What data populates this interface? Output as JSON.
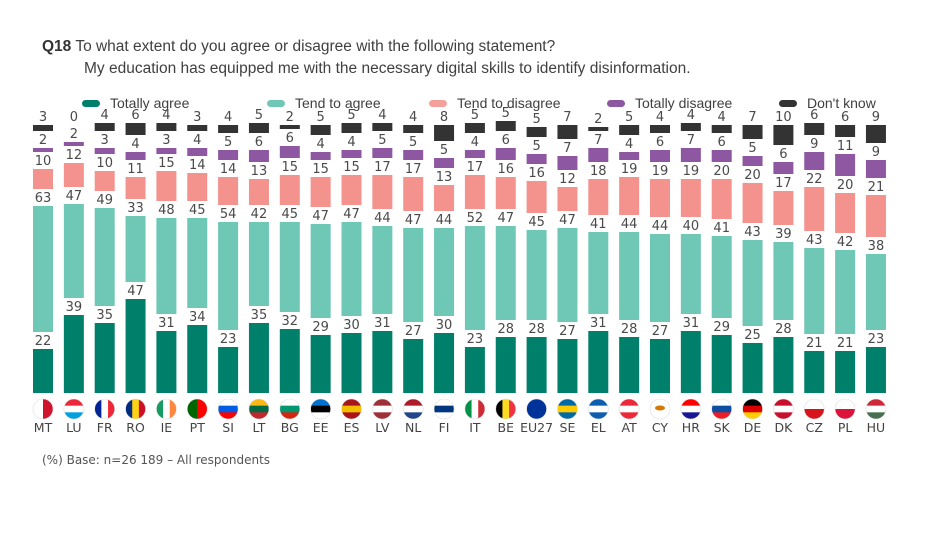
{
  "title": {
    "code": "Q18",
    "line1": "To what extent do you agree or disagree with the following statement?",
    "line2": "My education has equipped me with the necessary digital skills to identify disinformation."
  },
  "footer": "(%) Base: n=26 189 – All respondents",
  "chart_data": {
    "type": "bar",
    "stacked": true,
    "title": "To what extent do you agree or disagree with the following statement? My education has equipped me with the necessary digital skills to identify disinformation.",
    "xlabel": "",
    "ylabel": "%",
    "ylim": [
      0,
      100
    ],
    "grid": false,
    "legend_position": "top",
    "categories": [
      "MT",
      "LU",
      "FR",
      "RO",
      "IE",
      "PT",
      "SI",
      "LT",
      "BG",
      "EE",
      "ES",
      "LV",
      "NL",
      "FI",
      "IT",
      "BE",
      "EU27",
      "SE",
      "EL",
      "AT",
      "CY",
      "HR",
      "SK",
      "DE",
      "DK",
      "CZ",
      "PL",
      "HU"
    ],
    "series": [
      {
        "name": "Totally agree",
        "color": "#00806a",
        "values": [
          22,
          39,
          35,
          47,
          31,
          34,
          23,
          35,
          32,
          29,
          30,
          31,
          27,
          30,
          23,
          28,
          28,
          27,
          31,
          28,
          27,
          31,
          29,
          25,
          28,
          21,
          21,
          23
        ]
      },
      {
        "name": "Tend to agree",
        "color": "#6fc7b6",
        "values": [
          63,
          47,
          49,
          33,
          48,
          45,
          54,
          42,
          45,
          47,
          47,
          44,
          47,
          44,
          52,
          47,
          45,
          47,
          41,
          44,
          44,
          40,
          41,
          43,
          39,
          43,
          42,
          38
        ]
      },
      {
        "name": "Tend to disagree",
        "color": "#f4928d",
        "values": [
          10,
          12,
          10,
          11,
          15,
          14,
          14,
          13,
          15,
          15,
          15,
          17,
          17,
          13,
          17,
          16,
          16,
          12,
          18,
          19,
          19,
          19,
          20,
          20,
          17,
          22,
          20,
          21
        ]
      },
      {
        "name": "Totally disagree",
        "color": "#8e57a1",
        "values": [
          2,
          2,
          3,
          4,
          3,
          4,
          5,
          6,
          6,
          4,
          4,
          5,
          5,
          5,
          4,
          6,
          5,
          7,
          7,
          4,
          6,
          7,
          6,
          5,
          6,
          9,
          11,
          9
        ]
      },
      {
        "name": "Don't know",
        "color": "#333333",
        "values": [
          3,
          0,
          4,
          6,
          4,
          3,
          4,
          5,
          2,
          5,
          5,
          4,
          4,
          8,
          5,
          5,
          5,
          7,
          2,
          5,
          4,
          4,
          4,
          7,
          10,
          6,
          6,
          9
        ]
      }
    ]
  }
}
